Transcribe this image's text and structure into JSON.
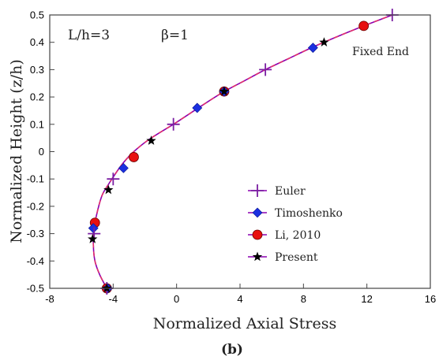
{
  "chart_data": {
    "type": "line",
    "xlabel": "Normalized Axial Stress",
    "ylabel": "Normalized Height (z/h)",
    "xlim": [
      -8,
      16
    ],
    "ylim": [
      -0.5,
      0.5
    ],
    "x_ticks": [
      "-8",
      "-4",
      "0",
      "4",
      "8",
      "12",
      "16"
    ],
    "y_ticks": [
      "0.5",
      "0.4",
      "0.3",
      "0.2",
      "0.1",
      "0",
      "-0.1",
      "-0.2",
      "-0.3",
      "-0.4",
      "-0.5"
    ],
    "x_tick_values": [
      -8,
      -4,
      0,
      4,
      8,
      12,
      16
    ],
    "y_tick_values": [
      0.5,
      0.4,
      0.3,
      0.2,
      0.1,
      0,
      -0.1,
      -0.2,
      -0.3,
      -0.4,
      -0.5
    ],
    "grid": false,
    "legend_position": "bottom-right",
    "annotations": [
      "L/h=3",
      "β=1",
      "Fixed End"
    ],
    "caption": "(b)",
    "curve": {
      "x": [
        -4.4,
        -4.85,
        -5.15,
        -5.25,
        -5.2,
        -5.0,
        -4.7,
        -4.3,
        -3.85,
        -3.35,
        -2.7,
        -1.85,
        -1.05,
        -0.2,
        0.85,
        1.9,
        3.0,
        4.3,
        5.6,
        7.05,
        8.5,
        10.1,
        11.8,
        13.6
      ],
      "y": [
        -0.5,
        -0.45,
        -0.4,
        -0.34,
        -0.28,
        -0.22,
        -0.16,
        -0.12,
        -0.08,
        -0.04,
        0.0,
        0.04,
        0.07,
        0.1,
        0.14,
        0.18,
        0.22,
        0.26,
        0.3,
        0.34,
        0.38,
        0.42,
        0.46,
        0.5
      ],
      "colors": [
        "#8b00b0",
        "#e0306e"
      ]
    },
    "series": [
      {
        "name": "Euler",
        "marker": "plus",
        "color": "#7a1fa2",
        "x": [
          -4.4,
          -5.2,
          -4.0,
          -0.2,
          5.6,
          13.6
        ],
        "y": [
          -0.5,
          -0.3,
          -0.1,
          0.1,
          0.3,
          0.5
        ]
      },
      {
        "name": "Timoshenko",
        "marker": "diamond",
        "color": "#1a2fe0",
        "x": [
          -4.35,
          -5.25,
          -3.35,
          1.3,
          3.0,
          8.6
        ],
        "y": [
          -0.5,
          -0.28,
          -0.06,
          0.16,
          0.22,
          0.38
        ]
      },
      {
        "name": "Li, 2010",
        "marker": "circle",
        "color": "#e81010",
        "x": [
          -4.4,
          -5.15,
          -2.7,
          3.0,
          11.8
        ],
        "y": [
          -0.5,
          -0.26,
          -0.02,
          0.22,
          0.46
        ]
      },
      {
        "name": "Present",
        "marker": "star",
        "color": "#000000",
        "x": [
          -4.4,
          -5.3,
          -4.3,
          -1.6,
          3.0,
          9.3
        ],
        "y": [
          -0.5,
          -0.32,
          -0.14,
          0.04,
          0.22,
          0.4
        ]
      }
    ]
  }
}
